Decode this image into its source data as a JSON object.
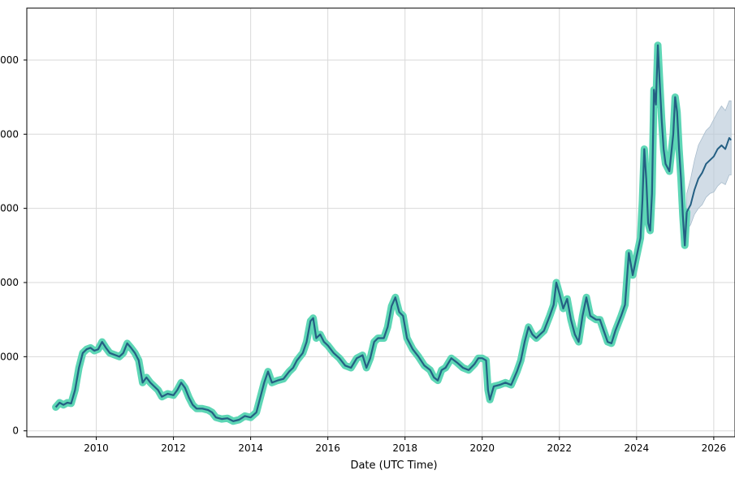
{
  "chart_data": {
    "type": "line",
    "title": "",
    "xlabel": "Date (UTC Time)",
    "ylabel": "",
    "x_ticks": [
      "2010",
      "2012",
      "2014",
      "2016",
      "2018",
      "2020",
      "2022",
      "2024",
      "2026"
    ],
    "y_ticks": [
      "0",
      "000",
      "000",
      "000",
      "000",
      "000"
    ],
    "xlim": [
      2008.2,
      2026.55
    ],
    "ylim": [
      -0.08,
      5.7
    ],
    "grid": true,
    "legend": "none",
    "colors": {
      "line": "#245f83",
      "band": "#5dd6b5",
      "forecast_band": "#b8cad8"
    },
    "series": [
      {
        "role": "history",
        "points": [
          [
            2008.95,
            0.32
          ],
          [
            2009.05,
            0.38
          ],
          [
            2009.15,
            0.35
          ],
          [
            2009.25,
            0.38
          ],
          [
            2009.35,
            0.37
          ],
          [
            2009.45,
            0.55
          ],
          [
            2009.55,
            0.85
          ],
          [
            2009.65,
            1.05
          ],
          [
            2009.75,
            1.1
          ],
          [
            2009.85,
            1.12
          ],
          [
            2009.95,
            1.08
          ],
          [
            2010.05,
            1.1
          ],
          [
            2010.15,
            1.2
          ],
          [
            2010.25,
            1.12
          ],
          [
            2010.35,
            1.05
          ],
          [
            2010.5,
            1.02
          ],
          [
            2010.6,
            1.0
          ],
          [
            2010.7,
            1.05
          ],
          [
            2010.8,
            1.18
          ],
          [
            2010.9,
            1.12
          ],
          [
            2011.0,
            1.05
          ],
          [
            2011.1,
            0.95
          ],
          [
            2011.2,
            0.65
          ],
          [
            2011.3,
            0.72
          ],
          [
            2011.4,
            0.65
          ],
          [
            2011.5,
            0.6
          ],
          [
            2011.6,
            0.55
          ],
          [
            2011.7,
            0.46
          ],
          [
            2011.85,
            0.5
          ],
          [
            2012.0,
            0.48
          ],
          [
            2012.1,
            0.55
          ],
          [
            2012.2,
            0.65
          ],
          [
            2012.3,
            0.58
          ],
          [
            2012.4,
            0.45
          ],
          [
            2012.5,
            0.35
          ],
          [
            2012.6,
            0.3
          ],
          [
            2012.75,
            0.3
          ],
          [
            2012.9,
            0.28
          ],
          [
            2013.0,
            0.25
          ],
          [
            2013.1,
            0.18
          ],
          [
            2013.25,
            0.16
          ],
          [
            2013.4,
            0.17
          ],
          [
            2013.55,
            0.13
          ],
          [
            2013.7,
            0.15
          ],
          [
            2013.85,
            0.2
          ],
          [
            2014.0,
            0.18
          ],
          [
            2014.15,
            0.25
          ],
          [
            2014.25,
            0.45
          ],
          [
            2014.35,
            0.65
          ],
          [
            2014.45,
            0.8
          ],
          [
            2014.55,
            0.65
          ],
          [
            2014.7,
            0.68
          ],
          [
            2014.85,
            0.7
          ],
          [
            2015.0,
            0.8
          ],
          [
            2015.1,
            0.85
          ],
          [
            2015.2,
            0.95
          ],
          [
            2015.35,
            1.05
          ],
          [
            2015.45,
            1.2
          ],
          [
            2015.55,
            1.48
          ],
          [
            2015.62,
            1.52
          ],
          [
            2015.7,
            1.25
          ],
          [
            2015.8,
            1.3
          ],
          [
            2015.9,
            1.2
          ],
          [
            2016.0,
            1.15
          ],
          [
            2016.15,
            1.05
          ],
          [
            2016.3,
            0.98
          ],
          [
            2016.45,
            0.88
          ],
          [
            2016.6,
            0.85
          ],
          [
            2016.75,
            0.98
          ],
          [
            2016.9,
            1.02
          ],
          [
            2017.0,
            0.85
          ],
          [
            2017.1,
            0.98
          ],
          [
            2017.2,
            1.2
          ],
          [
            2017.3,
            1.25
          ],
          [
            2017.45,
            1.25
          ],
          [
            2017.55,
            1.4
          ],
          [
            2017.65,
            1.68
          ],
          [
            2017.75,
            1.8
          ],
          [
            2017.85,
            1.6
          ],
          [
            2017.95,
            1.55
          ],
          [
            2018.05,
            1.25
          ],
          [
            2018.2,
            1.1
          ],
          [
            2018.35,
            1.0
          ],
          [
            2018.5,
            0.88
          ],
          [
            2018.65,
            0.82
          ],
          [
            2018.75,
            0.72
          ],
          [
            2018.85,
            0.68
          ],
          [
            2018.95,
            0.82
          ],
          [
            2019.05,
            0.85
          ],
          [
            2019.2,
            0.98
          ],
          [
            2019.35,
            0.92
          ],
          [
            2019.5,
            0.85
          ],
          [
            2019.65,
            0.82
          ],
          [
            2019.8,
            0.9
          ],
          [
            2019.9,
            0.98
          ],
          [
            2020.0,
            0.98
          ],
          [
            2020.1,
            0.95
          ],
          [
            2020.15,
            0.55
          ],
          [
            2020.2,
            0.42
          ],
          [
            2020.3,
            0.6
          ],
          [
            2020.45,
            0.62
          ],
          [
            2020.6,
            0.65
          ],
          [
            2020.75,
            0.62
          ],
          [
            2020.9,
            0.8
          ],
          [
            2021.0,
            0.95
          ],
          [
            2021.1,
            1.2
          ],
          [
            2021.2,
            1.4
          ],
          [
            2021.3,
            1.3
          ],
          [
            2021.4,
            1.25
          ],
          [
            2021.5,
            1.3
          ],
          [
            2021.6,
            1.35
          ],
          [
            2021.75,
            1.55
          ],
          [
            2021.85,
            1.7
          ],
          [
            2021.92,
            2.0
          ],
          [
            2022.0,
            1.85
          ],
          [
            2022.1,
            1.65
          ],
          [
            2022.2,
            1.78
          ],
          [
            2022.3,
            1.5
          ],
          [
            2022.4,
            1.3
          ],
          [
            2022.5,
            1.2
          ],
          [
            2022.6,
            1.55
          ],
          [
            2022.7,
            1.8
          ],
          [
            2022.8,
            1.55
          ],
          [
            2022.95,
            1.5
          ],
          [
            2023.05,
            1.5
          ],
          [
            2023.15,
            1.35
          ],
          [
            2023.25,
            1.2
          ],
          [
            2023.35,
            1.18
          ],
          [
            2023.45,
            1.35
          ],
          [
            2023.6,
            1.55
          ],
          [
            2023.7,
            1.7
          ],
          [
            2023.8,
            2.4
          ],
          [
            2023.9,
            2.1
          ],
          [
            2024.0,
            2.35
          ],
          [
            2024.1,
            2.6
          ],
          [
            2024.15,
            3.1
          ],
          [
            2024.2,
            3.8
          ],
          [
            2024.25,
            3.4
          ],
          [
            2024.3,
            2.8
          ],
          [
            2024.35,
            2.7
          ],
          [
            2024.4,
            3.2
          ],
          [
            2024.45,
            4.6
          ],
          [
            2024.5,
            4.4
          ],
          [
            2024.55,
            5.2
          ],
          [
            2024.6,
            4.7
          ],
          [
            2024.65,
            4.2
          ],
          [
            2024.7,
            3.8
          ],
          [
            2024.75,
            3.6
          ],
          [
            2024.85,
            3.5
          ],
          [
            2024.95,
            4.0
          ],
          [
            2025.0,
            4.5
          ],
          [
            2025.05,
            4.3
          ],
          [
            2025.1,
            3.8
          ],
          [
            2025.15,
            3.4
          ],
          [
            2025.2,
            2.9
          ],
          [
            2025.25,
            2.5
          ],
          [
            2025.3,
            2.95
          ]
        ]
      },
      {
        "role": "forecast",
        "points": [
          [
            2025.3,
            2.95
          ],
          [
            2025.4,
            3.05
          ],
          [
            2025.5,
            3.25
          ],
          [
            2025.6,
            3.4
          ],
          [
            2025.7,
            3.48
          ],
          [
            2025.8,
            3.6
          ],
          [
            2025.9,
            3.65
          ],
          [
            2026.0,
            3.7
          ],
          [
            2026.1,
            3.8
          ],
          [
            2026.2,
            3.85
          ],
          [
            2026.3,
            3.8
          ],
          [
            2026.4,
            3.95
          ],
          [
            2026.45,
            3.92
          ]
        ],
        "lower": [
          [
            2025.3,
            2.7
          ],
          [
            2025.4,
            2.78
          ],
          [
            2025.5,
            2.92
          ],
          [
            2025.6,
            3.0
          ],
          [
            2025.7,
            3.05
          ],
          [
            2025.8,
            3.15
          ],
          [
            2025.9,
            3.2
          ],
          [
            2026.0,
            3.22
          ],
          [
            2026.1,
            3.3
          ],
          [
            2026.2,
            3.35
          ],
          [
            2026.3,
            3.32
          ],
          [
            2026.4,
            3.45
          ],
          [
            2026.45,
            3.45
          ]
        ],
        "upper": [
          [
            2025.3,
            3.2
          ],
          [
            2025.4,
            3.4
          ],
          [
            2025.5,
            3.65
          ],
          [
            2025.6,
            3.85
          ],
          [
            2025.7,
            3.95
          ],
          [
            2025.8,
            4.05
          ],
          [
            2025.9,
            4.1
          ],
          [
            2026.0,
            4.2
          ],
          [
            2026.1,
            4.3
          ],
          [
            2026.2,
            4.38
          ],
          [
            2026.3,
            4.32
          ],
          [
            2026.4,
            4.45
          ],
          [
            2026.45,
            4.45
          ]
        ]
      }
    ]
  }
}
